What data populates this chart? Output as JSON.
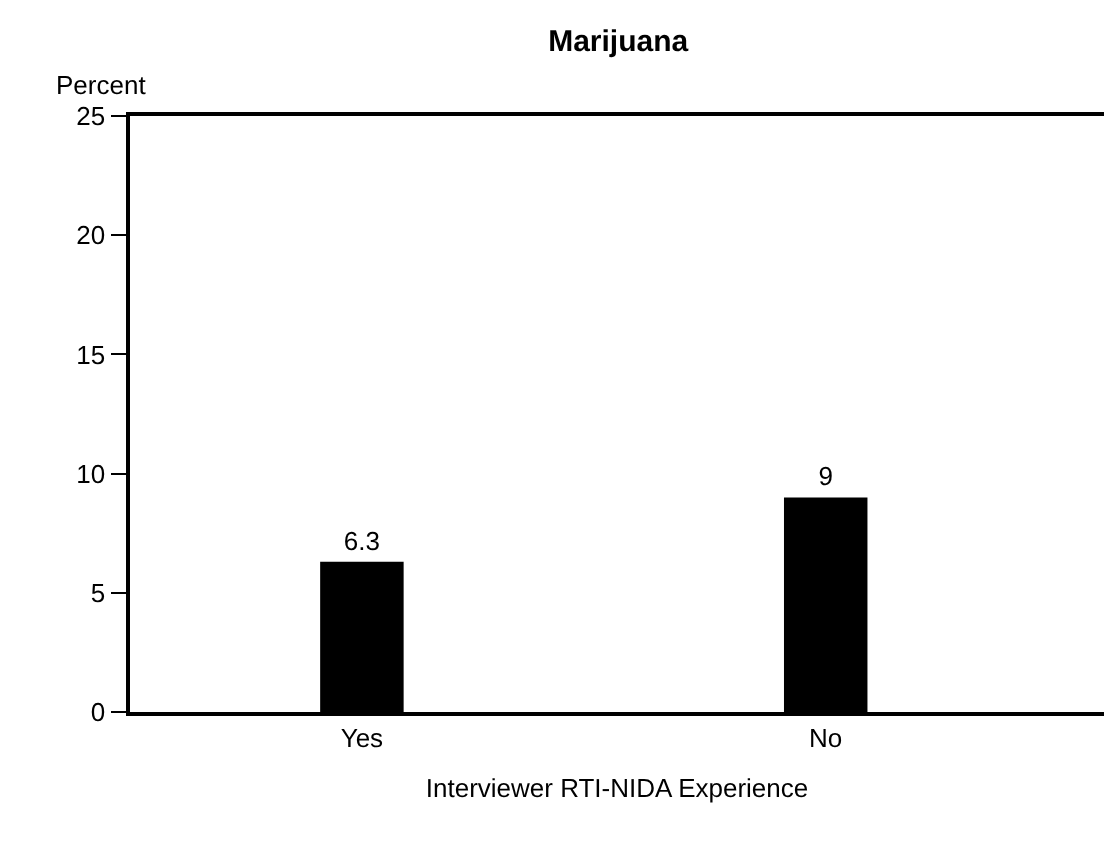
{
  "chart_data": {
    "type": "bar",
    "title": "Marijuana",
    "ylabel": "Percent",
    "xlabel": "Interviewer RTI-NIDA Experience",
    "categories": [
      "Yes",
      "No"
    ],
    "values": [
      6.3,
      9
    ],
    "color": "#000000",
    "ylim": [
      0,
      25
    ],
    "yticks": [
      0,
      5,
      10,
      15,
      20,
      25
    ],
    "data_labels": true
  }
}
